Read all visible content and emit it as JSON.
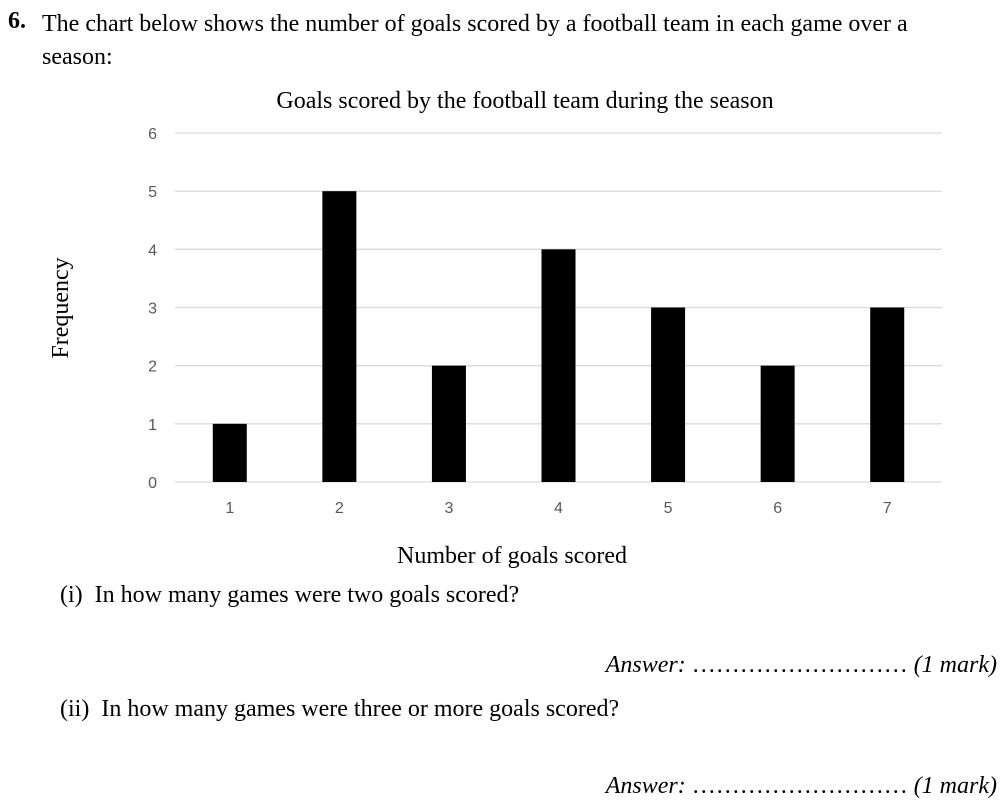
{
  "question": {
    "number": "6.",
    "text": "The chart below shows the number of goals scored by a football team in each game over a season:"
  },
  "chart_data": {
    "type": "bar",
    "title": "Goals scored by the football team during the season",
    "xlabel": "Number of goals scored",
    "ylabel": "Frequency",
    "categories": [
      "1",
      "2",
      "3",
      "4",
      "5",
      "6",
      "7"
    ],
    "values": [
      1,
      5,
      2,
      4,
      3,
      2,
      3
    ],
    "ylim": [
      0,
      6
    ],
    "yticks": [
      "0",
      "1",
      "2",
      "3",
      "4",
      "5",
      "6"
    ],
    "grid": true,
    "bar_color": "#000000",
    "grid_color": "#d9d9d9"
  },
  "parts": [
    {
      "label": "(i)",
      "text": "In how many games were two goals scored?",
      "answer_label": "Answer:",
      "answer_dots": "………………………",
      "marks": "(1 mark)"
    },
    {
      "label": "(ii)",
      "text": "In how many games were three or more goals scored?",
      "answer_label": "Answer:",
      "answer_dots": "………………………",
      "marks": "(1 mark)"
    }
  ]
}
